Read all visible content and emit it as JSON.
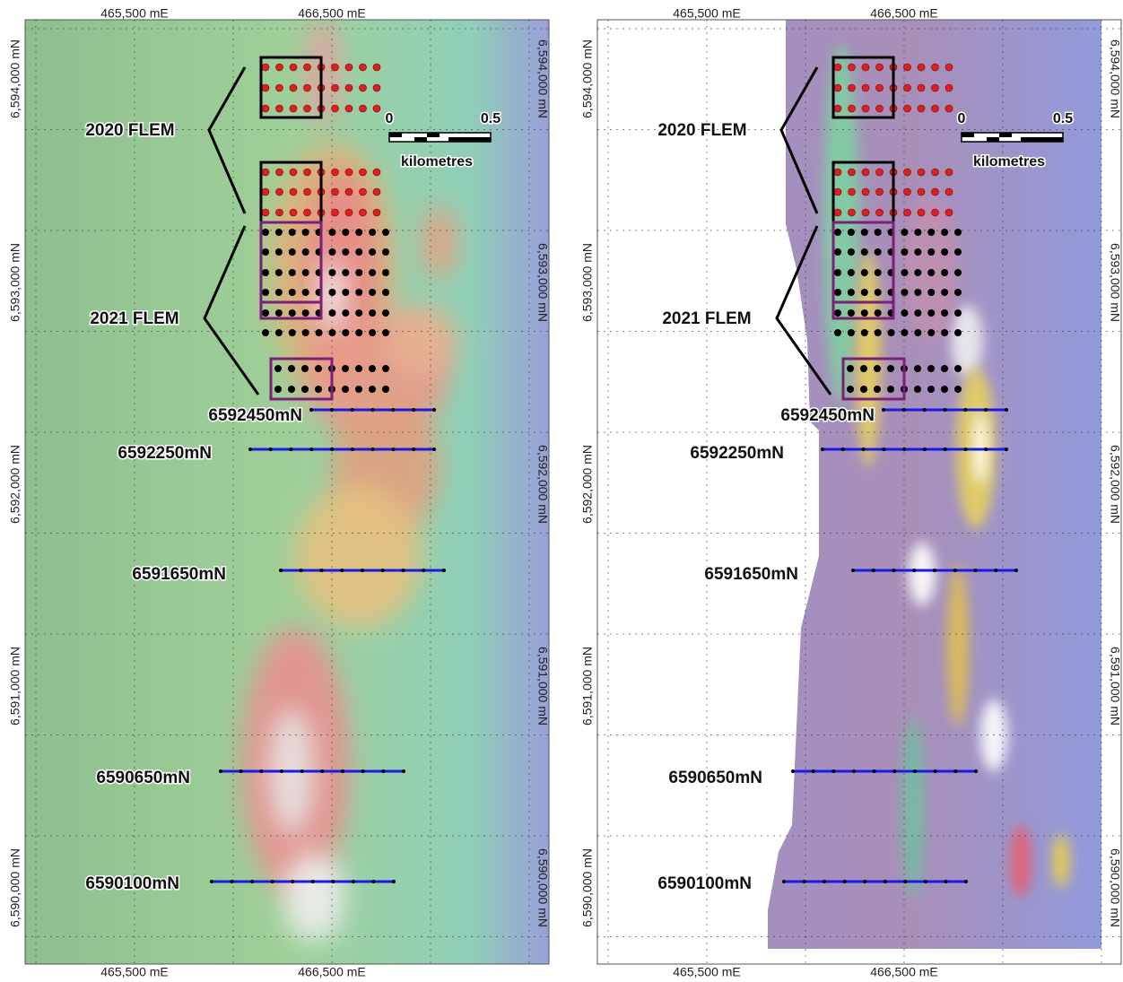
{
  "panels": [
    {
      "top_labels": [
        "465,500 mE",
        "466,500 mE"
      ],
      "bottom_labels": [
        "465,500 mE",
        "466,500 mE"
      ],
      "left_labels": [
        "6,594,000 mN",
        "6,593,000 mN",
        "6,592,000 mN",
        "6,591,000 mN",
        "6,590,000 mN"
      ],
      "right_labels": [
        "6,594,000 mN",
        "6,593,000 mN",
        "6,592,000 mN",
        "6,591,000 mN",
        "6,590,000 mN"
      ],
      "survey_labels": [
        "2020 FLEM",
        "2021 FLEM"
      ],
      "scale": {
        "start": "0",
        "end": "0.5",
        "unit": "kilometres"
      },
      "line_labels": [
        "6592450mN",
        "6592250mN",
        "6591650mN",
        "6590650mN",
        "6590100mN"
      ]
    },
    {
      "top_labels": [
        "465,500 mE",
        "466,500 mE"
      ],
      "bottom_labels": [
        "465,500 mE",
        "466,500 mE"
      ],
      "left_labels": [
        "6,594,000 mN",
        "6,593,000 mN",
        "6,592,000 mN",
        "6,591,000 mN",
        "6,590,000 mN"
      ],
      "right_labels": [
        "6,594,000 mN",
        "6,593,000 mN",
        "6,592,000 mN",
        "6,591,000 mN",
        "6,590,000 mN"
      ],
      "survey_labels": [
        "2020 FLEM",
        "2021 FLEM"
      ],
      "scale": {
        "start": "0",
        "end": "0.5",
        "unit": "kilometres"
      },
      "line_labels": [
        "6592450mN",
        "6592250mN",
        "6591650mN",
        "6590650mN",
        "6590100mN"
      ]
    }
  ]
}
